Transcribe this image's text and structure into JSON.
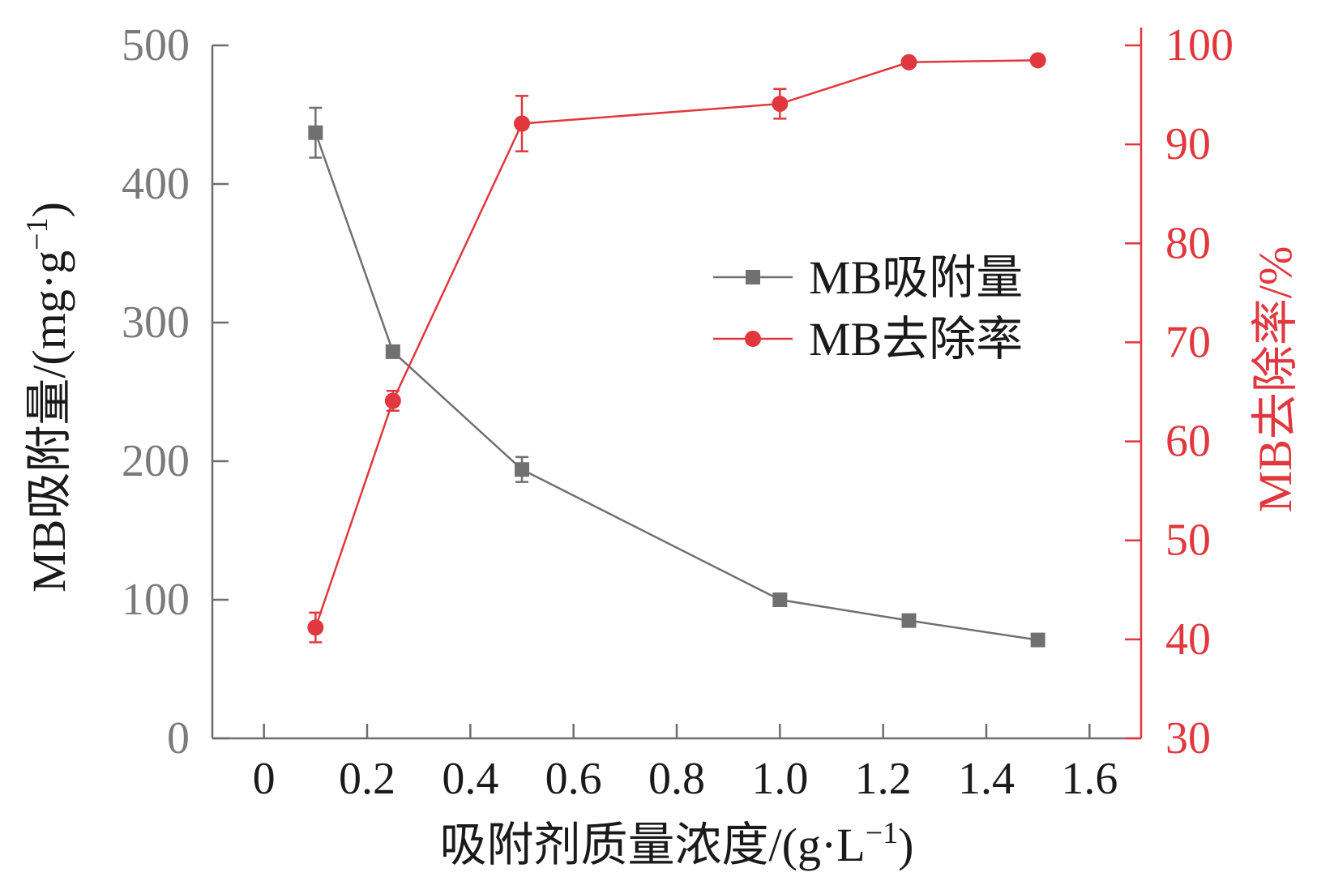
{
  "chart_data": {
    "type": "line",
    "xlabel": "吸附剂质量浓度/(g·L",
    "xlabel_sup": "−1",
    "xlabel_end": ")",
    "ylabel_left": "MB吸附量/(mg·g",
    "ylabel_left_sup": "−1",
    "ylabel_left_end": ")",
    "ylabel_right": "MB去除率/%",
    "x_ticks": [
      "0",
      "0.2",
      "0.4",
      "0.6",
      "0.8",
      "1.0",
      "1.2",
      "1.4",
      "1.6"
    ],
    "x_tick_values": [
      0,
      0.2,
      0.4,
      0.6,
      0.8,
      1.0,
      1.2,
      1.4,
      1.6
    ],
    "y_left_ticks": [
      "0",
      "100",
      "200",
      "300",
      "400",
      "500"
    ],
    "y_left_tick_values": [
      0,
      100,
      200,
      300,
      400,
      500
    ],
    "y_right_ticks": [
      "30",
      "40",
      "50",
      "60",
      "70",
      "80",
      "90",
      "100"
    ],
    "y_right_tick_values": [
      30,
      40,
      50,
      60,
      70,
      80,
      90,
      100
    ],
    "xlim": [
      -0.1,
      1.7
    ],
    "ylim_left": [
      0,
      500
    ],
    "ylim_right": [
      30,
      100
    ],
    "grid": false,
    "legend_position": "center-right",
    "series": [
      {
        "name": "MB吸附量",
        "axis": "left",
        "marker": "square",
        "color": "#707070",
        "x": [
          0.1,
          0.25,
          0.5,
          1.0,
          1.25,
          1.5
        ],
        "y": [
          437,
          279,
          194,
          100,
          85,
          71
        ],
        "err": [
          18,
          0,
          9,
          0,
          0,
          0
        ]
      },
      {
        "name": "MB去除率",
        "axis": "right",
        "marker": "circle",
        "color": "#e0383e",
        "x": [
          0.1,
          0.25,
          0.5,
          1.0,
          1.25,
          1.5
        ],
        "y": [
          41.2,
          64.1,
          92.1,
          94.1,
          98.3,
          98.5
        ],
        "err": [
          1.5,
          1.0,
          2.8,
          1.5,
          0,
          0
        ]
      }
    ]
  },
  "colors": {
    "axis_left": "#6e6e6e",
    "axis_right": "#e0383e",
    "text_dark": "#1a1a1a"
  }
}
